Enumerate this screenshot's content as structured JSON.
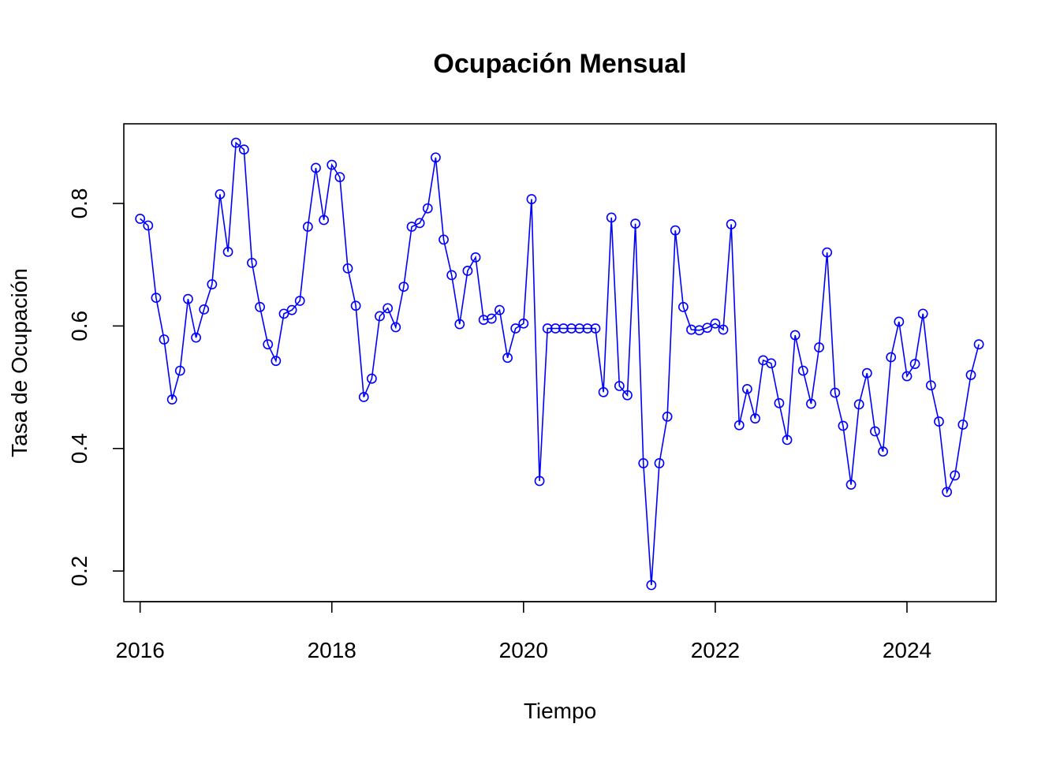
{
  "chart_data": {
    "type": "line",
    "title": "Ocupación Mensual",
    "xlabel": "Tiempo",
    "ylabel": "Tasa de Ocupación",
    "xlim": [
      2015.83,
      2024.93
    ],
    "ylim": [
      0.15,
      0.93
    ],
    "xticks": [
      2016,
      2018,
      2020,
      2022,
      2024
    ],
    "yticks": [
      0.2,
      0.4,
      0.6,
      0.8
    ],
    "color": "#0000ff",
    "grid": false,
    "legend": "none",
    "series": [
      {
        "x_start": 2016.0,
        "x_step": 0.083333,
        "values": [
          0.775,
          0.764,
          0.646,
          0.578,
          0.48,
          0.527,
          0.644,
          0.581,
          0.627,
          0.668,
          0.815,
          0.721,
          0.899,
          0.888,
          0.703,
          0.631,
          0.57,
          0.543,
          0.62,
          0.626,
          0.641,
          0.762,
          0.858,
          0.773,
          0.863,
          0.843,
          0.694,
          0.633,
          0.484,
          0.514,
          0.616,
          0.629,
          0.598,
          0.664,
          0.762,
          0.768,
          0.792,
          0.875,
          0.741,
          0.683,
          0.603,
          0.69,
          0.712,
          0.61,
          0.612,
          0.626,
          0.548,
          0.596,
          0.604,
          0.807,
          0.347,
          0.596,
          0.596,
          0.596,
          0.596,
          0.596,
          0.596,
          0.596,
          0.492,
          0.777,
          0.502,
          0.487,
          0.767,
          0.376,
          0.177,
          0.376,
          0.452,
          0.756,
          0.631,
          0.594,
          0.593,
          0.597,
          0.604,
          0.594,
          0.766,
          0.438,
          0.497,
          0.449,
          0.544,
          0.539,
          0.474,
          0.414,
          0.585,
          0.527,
          0.473,
          0.565,
          0.72,
          0.491,
          0.437,
          0.341,
          0.472,
          0.523,
          0.428,
          0.395,
          0.549,
          0.607,
          0.518,
          0.538,
          0.62,
          0.503,
          0.444,
          0.329,
          0.356,
          0.439,
          0.52,
          0.57
        ]
      }
    ]
  }
}
